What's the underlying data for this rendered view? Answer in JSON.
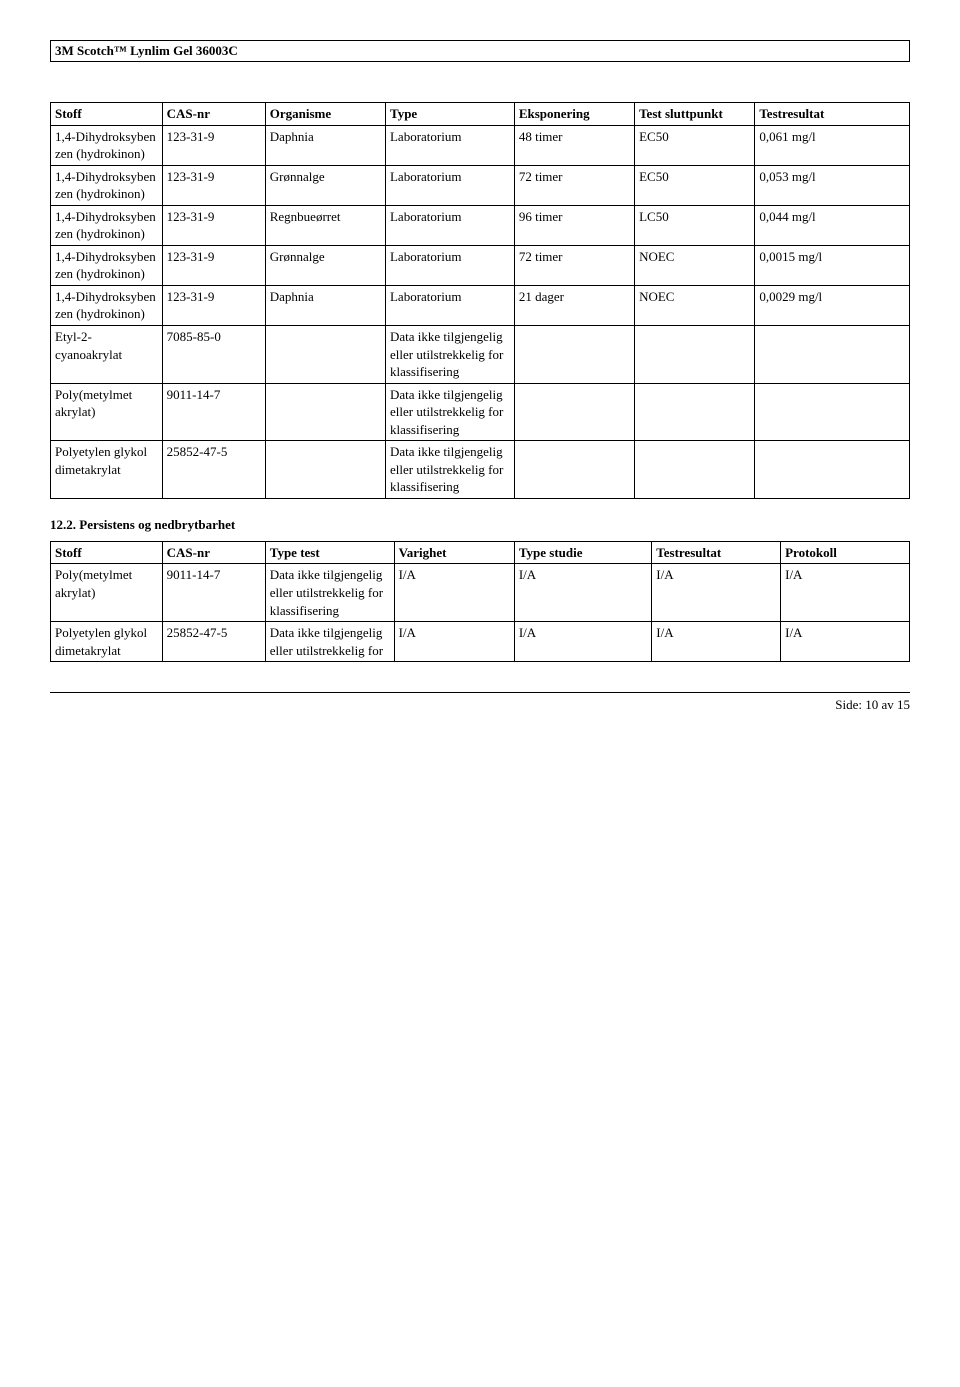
{
  "header": {
    "title": "3M Scotch™ Lynlim Gel 36003C"
  },
  "table1": {
    "headers": [
      "Stoff",
      "CAS-nr",
      "Organisme",
      "Type",
      "Eksponering",
      "Test sluttpunkt",
      "Testresultat"
    ],
    "rows": [
      {
        "stoff": "1,4-Dihydroksyben zen (hydrokinon)",
        "cas": "123-31-9",
        "org": "Daphnia",
        "type": "Laboratorium",
        "eksp": "48 timer",
        "tsp": "EC50",
        "res": "0,061 mg/l"
      },
      {
        "stoff": "1,4-Dihydroksyben zen (hydrokinon)",
        "cas": "123-31-9",
        "org": "Grønnalge",
        "type": "Laboratorium",
        "eksp": "72 timer",
        "tsp": "EC50",
        "res": "0,053 mg/l"
      },
      {
        "stoff": "1,4-Dihydroksyben zen (hydrokinon)",
        "cas": "123-31-9",
        "org": "Regnbueørret",
        "type": "Laboratorium",
        "eksp": "96 timer",
        "tsp": "LC50",
        "res": "0,044 mg/l"
      },
      {
        "stoff": "1,4-Dihydroksyben zen (hydrokinon)",
        "cas": "123-31-9",
        "org": "Grønnalge",
        "type": "Laboratorium",
        "eksp": "72 timer",
        "tsp": "NOEC",
        "res": "0,0015 mg/l"
      },
      {
        "stoff": "1,4-Dihydroksyben zen (hydrokinon)",
        "cas": "123-31-9",
        "org": "Daphnia",
        "type": "Laboratorium",
        "eksp": "21 dager",
        "tsp": "NOEC",
        "res": "0,0029 mg/l"
      },
      {
        "stoff": "Etyl-2-cyanoakrylat",
        "cas": "7085-85-0",
        "org": "",
        "type": "Data ikke tilgjengelig eller utilstrekkelig for klassifisering",
        "eksp": "",
        "tsp": "",
        "res": ""
      },
      {
        "stoff": "Poly(metylmet akrylat)",
        "cas": "9011-14-7",
        "org": "",
        "type": "Data ikke tilgjengelig eller utilstrekkelig for klassifisering",
        "eksp": "",
        "tsp": "",
        "res": ""
      },
      {
        "stoff": "Polyetylen glykol dimetakrylat",
        "cas": "25852-47-5",
        "org": "",
        "type": "Data ikke tilgjengelig eller utilstrekkelig for klassifisering",
        "eksp": "",
        "tsp": "",
        "res": ""
      }
    ]
  },
  "section_12_2": {
    "heading": "12.2. Persistens og nedbrytbarhet"
  },
  "table2": {
    "headers": [
      "Stoff",
      "CAS-nr",
      "Type test",
      "Varighet",
      "Type studie",
      "Testresultat",
      "Protokoll"
    ],
    "rows": [
      {
        "stoff": "Poly(metylmet akrylat)",
        "cas": "9011-14-7",
        "tt": "Data ikke tilgjengelig eller utilstrekkelig for klassifisering",
        "var": "I/A",
        "ts": "I/A",
        "res": "I/A",
        "prot": "I/A"
      },
      {
        "stoff": "Polyetylen glykol dimetakrylat",
        "cas": "25852-47-5",
        "tt": "Data ikke tilgjengelig eller utilstrekkelig for",
        "var": "I/A",
        "ts": "I/A",
        "res": "I/A",
        "prot": "I/A"
      }
    ]
  },
  "footer": {
    "text": "Side: 10 av  15"
  }
}
